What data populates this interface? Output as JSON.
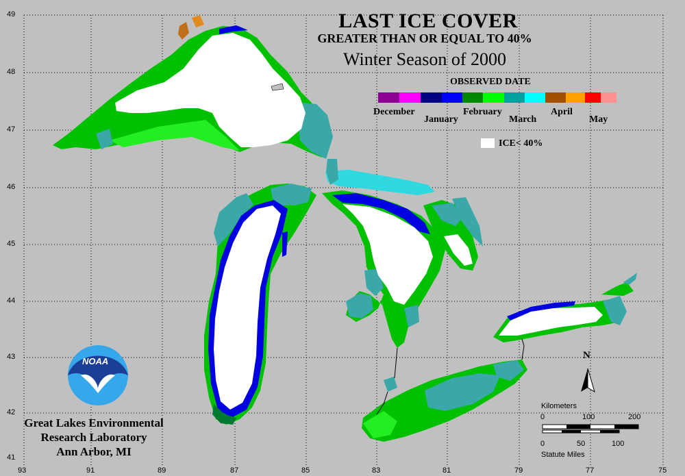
{
  "title": "LAST ICE COVER",
  "subtitle": "GREATER THAN OR EQUAL TO 40%",
  "season": "Winter Season of 2000",
  "legend": {
    "heading": "OBSERVED DATE",
    "months": [
      {
        "label": "December",
        "colors": [
          "#8b0090",
          "#ff00ff"
        ]
      },
      {
        "label": "January",
        "colors": [
          "#000080",
          "#0000ff"
        ]
      },
      {
        "label": "February",
        "colors": [
          "#008800",
          "#00ff00"
        ]
      },
      {
        "label": "March",
        "colors": [
          "#00a0a0",
          "#00ffff"
        ]
      },
      {
        "label": "April",
        "colors": [
          "#a05000",
          "#ffa000"
        ]
      },
      {
        "label": "May",
        "colors": [
          "#ff0000",
          "#ff9090"
        ]
      }
    ],
    "ice_under_label": "ICE< 40%",
    "ice_under_color": "#ffffff"
  },
  "longitude_ticks": [
    "93",
    "91",
    "89",
    "87",
    "85",
    "83",
    "81",
    "79",
    "77",
    "75"
  ],
  "latitude_ticks": [
    "49",
    "48",
    "47",
    "46",
    "45",
    "44",
    "43",
    "42",
    "41"
  ],
  "north_arrow": "N",
  "scale_bar": {
    "km_label": "Kilometers",
    "km_ticks": [
      "0",
      "100",
      "200"
    ],
    "miles_ticks": [
      "0",
      "50",
      "100"
    ],
    "miles_label": "Statute Miles"
  },
  "logo_text": "NOAA",
  "credit": [
    "Great Lakes Environmental",
    "Research Laboratory",
    "Ann Arbor, MI"
  ],
  "colors": {
    "background": "#c0c0c0",
    "green": "#00c000",
    "bright_green": "#22ee22",
    "teal": "#3aa8a8",
    "cyan": "#30d8e0",
    "blue": "#0000e0",
    "white": "#ffffff"
  }
}
